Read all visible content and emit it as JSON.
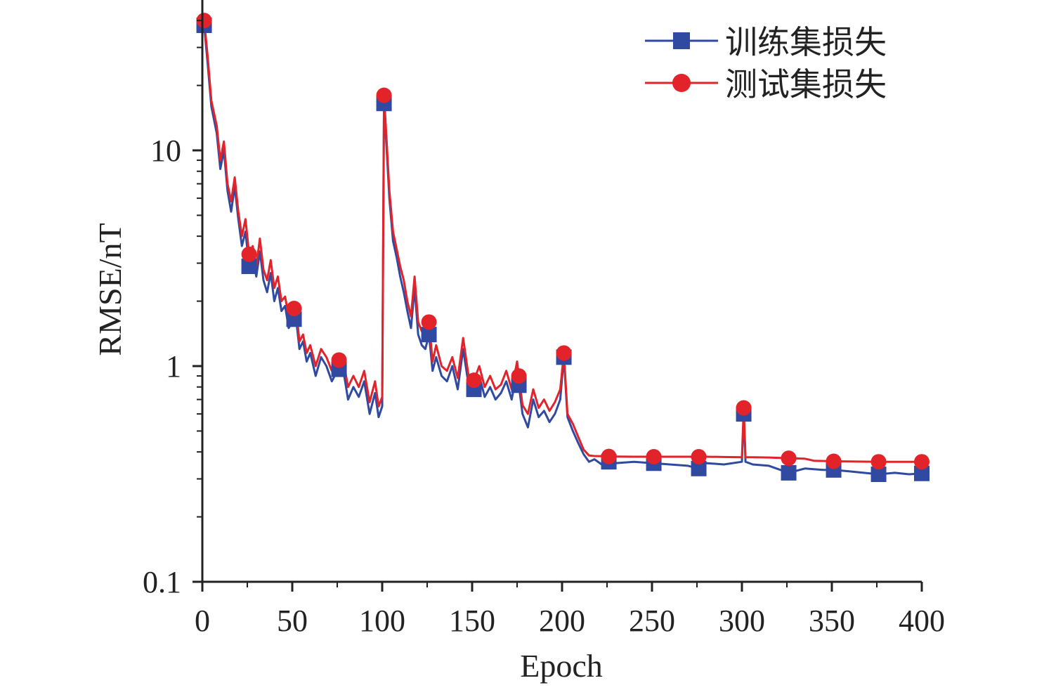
{
  "chart_data": {
    "type": "line",
    "title": "",
    "xlabel": "Epoch",
    "ylabel": "RMSE/nT",
    "xlim": [
      0,
      400
    ],
    "ylim": [
      0.1,
      50
    ],
    "yscale": "log",
    "grid": false,
    "legend_position": "top-right",
    "x_ticks": [
      "0",
      "50",
      "100",
      "150",
      "200",
      "250",
      "300",
      "350",
      "400"
    ],
    "y_ticks": [
      "0.1",
      "1",
      "10"
    ],
    "series": [
      {
        "name": "训练集损失",
        "color": "#2f4aa0",
        "marker": "square",
        "x": [
          1,
          3,
          5,
          8,
          10,
          12,
          14,
          16,
          18,
          20,
          22,
          24,
          26,
          28,
          30,
          32,
          34,
          36,
          38,
          40,
          42,
          44,
          46,
          48,
          50,
          52,
          54,
          56,
          58,
          60,
          63,
          66,
          69,
          72,
          75,
          78,
          81,
          84,
          87,
          90,
          93,
          96,
          98,
          100,
          101,
          102,
          104,
          106,
          108,
          110,
          112,
          114,
          116,
          118,
          120,
          122,
          124,
          126,
          128,
          130,
          133,
          136,
          139,
          142,
          145,
          148,
          151,
          154,
          157,
          160,
          163,
          166,
          169,
          172,
          175,
          178,
          181,
          184,
          187,
          190,
          193,
          196,
          199,
          201,
          203,
          206,
          209,
          212,
          215,
          218,
          222,
          226,
          230,
          240,
          250,
          260,
          270,
          276,
          280,
          290,
          300,
          301,
          302,
          306,
          315,
          326,
          335,
          345,
          351,
          360,
          376,
          385,
          393,
          400
        ],
        "y": [
          38,
          25,
          16,
          12,
          8.2,
          10,
          6.5,
          5.2,
          6.8,
          4.8,
          3.6,
          4.2,
          2.9,
          3.2,
          2.6,
          3.4,
          2.5,
          2.2,
          2.7,
          2.0,
          2.3,
          1.8,
          1.9,
          1.5,
          1.6,
          1.7,
          1.2,
          1.3,
          1.05,
          1.15,
          0.9,
          1.1,
          1.0,
          0.85,
          0.95,
          1.0,
          0.7,
          0.8,
          0.72,
          0.85,
          0.6,
          0.75,
          0.58,
          0.65,
          16.5,
          12,
          6,
          3.8,
          3.2,
          2.6,
          2.2,
          1.8,
          1.5,
          2.3,
          1.4,
          1.25,
          1.2,
          1.4,
          0.95,
          1.1,
          0.9,
          0.85,
          1.0,
          0.78,
          1.2,
          0.82,
          0.78,
          0.9,
          0.72,
          0.8,
          0.7,
          0.75,
          0.85,
          0.7,
          0.95,
          0.6,
          0.52,
          0.7,
          0.58,
          0.62,
          0.55,
          0.6,
          0.7,
          1.1,
          0.58,
          0.5,
          0.44,
          0.39,
          0.36,
          0.37,
          0.35,
          0.36,
          0.355,
          0.36,
          0.355,
          0.35,
          0.345,
          0.335,
          0.355,
          0.35,
          0.36,
          0.6,
          0.36,
          0.35,
          0.345,
          0.32,
          0.335,
          0.33,
          0.33,
          0.325,
          0.315,
          0.32,
          0.315,
          0.318
        ]
      },
      {
        "name": "测试集损失",
        "color": "#e2232a",
        "marker": "circle",
        "x": [
          1,
          3,
          5,
          8,
          10,
          12,
          14,
          16,
          18,
          20,
          22,
          24,
          26,
          28,
          30,
          32,
          34,
          36,
          38,
          40,
          42,
          44,
          46,
          48,
          50,
          52,
          54,
          56,
          58,
          60,
          63,
          66,
          69,
          72,
          75,
          78,
          81,
          84,
          87,
          90,
          93,
          96,
          98,
          100,
          101,
          102,
          104,
          106,
          108,
          110,
          112,
          114,
          116,
          118,
          120,
          122,
          124,
          126,
          128,
          130,
          133,
          136,
          139,
          142,
          145,
          148,
          151,
          154,
          157,
          160,
          163,
          166,
          169,
          172,
          175,
          178,
          181,
          184,
          187,
          190,
          193,
          196,
          199,
          201,
          203,
          206,
          209,
          212,
          215,
          218,
          222,
          226,
          230,
          240,
          250,
          260,
          270,
          276,
          280,
          290,
          300,
          301,
          302,
          306,
          315,
          326,
          335,
          340,
          351,
          360,
          376,
          385,
          393,
          400
        ],
        "y": [
          40,
          27,
          17,
          13,
          9.0,
          11,
          7.0,
          5.8,
          7.5,
          5.2,
          4.0,
          4.8,
          3.3,
          3.6,
          2.9,
          3.9,
          2.8,
          2.5,
          3.1,
          2.3,
          2.6,
          2.0,
          2.1,
          1.7,
          1.8,
          1.9,
          1.3,
          1.4,
          1.15,
          1.25,
          1.0,
          1.2,
          1.1,
          0.95,
          1.05,
          1.1,
          0.8,
          0.9,
          0.8,
          0.95,
          0.68,
          0.85,
          0.65,
          0.72,
          18,
          13,
          6.5,
          4.2,
          3.5,
          2.9,
          2.5,
          2.0,
          1.7,
          2.6,
          1.6,
          1.45,
          1.4,
          1.6,
          1.05,
          1.25,
          1.0,
          0.95,
          1.1,
          0.88,
          1.35,
          0.9,
          0.86,
          1.0,
          0.8,
          0.9,
          0.78,
          0.82,
          0.95,
          0.78,
          1.05,
          0.66,
          0.6,
          0.78,
          0.64,
          0.7,
          0.62,
          0.68,
          0.78,
          1.15,
          0.6,
          0.54,
          0.47,
          0.41,
          0.385,
          0.383,
          0.382,
          0.381,
          0.381,
          0.38,
          0.38,
          0.38,
          0.38,
          0.38,
          0.38,
          0.379,
          0.378,
          0.64,
          0.378,
          0.378,
          0.377,
          0.374,
          0.372,
          0.364,
          0.362,
          0.361,
          0.36,
          0.36,
          0.36,
          0.36
        ]
      }
    ],
    "marker_x": [
      1,
      26,
      51,
      76,
      101,
      126,
      151,
      176,
      201,
      226,
      251,
      276,
      301,
      326,
      351,
      376,
      400
    ]
  }
}
